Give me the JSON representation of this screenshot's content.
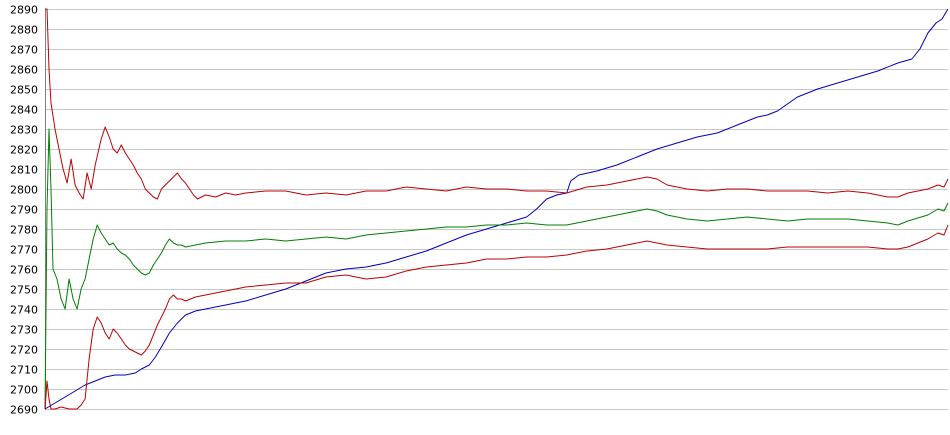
{
  "chart_data": {
    "type": "line",
    "title": "",
    "xlabel": "",
    "ylabel": "",
    "ylim": [
      2690,
      2890
    ],
    "xlim": [
      0,
      450
    ],
    "grid": true,
    "legend": "none",
    "y_ticks": [
      "2890",
      "2880",
      "2870",
      "2860",
      "2850",
      "2840",
      "2830",
      "2820",
      "2810",
      "2800",
      "2790",
      "2780",
      "2770",
      "2760",
      "2750",
      "2740",
      "2730",
      "2720",
      "2710",
      "2700",
      "2690"
    ],
    "series": [
      {
        "color": "#0000c0",
        "points": [
          [
            0,
            2690
          ],
          [
            5,
            2693
          ],
          [
            10,
            2696
          ],
          [
            15,
            2699
          ],
          [
            20,
            2702
          ],
          [
            25,
            2704
          ],
          [
            30,
            2706
          ],
          [
            35,
            2707
          ],
          [
            40,
            2707
          ],
          [
            45,
            2708
          ],
          [
            48,
            2710
          ],
          [
            52,
            2712
          ],
          [
            55,
            2716
          ],
          [
            58,
            2721
          ],
          [
            62,
            2728
          ],
          [
            66,
            2733
          ],
          [
            70,
            2737
          ],
          [
            75,
            2739
          ],
          [
            80,
            2740
          ],
          [
            90,
            2742
          ],
          [
            100,
            2744
          ],
          [
            110,
            2747
          ],
          [
            120,
            2750
          ],
          [
            130,
            2754
          ],
          [
            140,
            2758
          ],
          [
            150,
            2760
          ],
          [
            160,
            2761
          ],
          [
            170,
            2763
          ],
          [
            180,
            2766
          ],
          [
            190,
            2769
          ],
          [
            200,
            2773
          ],
          [
            210,
            2777
          ],
          [
            220,
            2780
          ],
          [
            230,
            2783
          ],
          [
            240,
            2786
          ],
          [
            245,
            2790
          ],
          [
            250,
            2795
          ],
          [
            255,
            2797
          ],
          [
            260,
            2798
          ],
          [
            262,
            2804
          ],
          [
            266,
            2807
          ],
          [
            275,
            2809
          ],
          [
            285,
            2812
          ],
          [
            295,
            2816
          ],
          [
            305,
            2820
          ],
          [
            315,
            2823
          ],
          [
            325,
            2826
          ],
          [
            335,
            2828
          ],
          [
            345,
            2832
          ],
          [
            355,
            2836
          ],
          [
            360,
            2837
          ],
          [
            365,
            2839
          ],
          [
            375,
            2846
          ],
          [
            385,
            2850
          ],
          [
            395,
            2853
          ],
          [
            405,
            2856
          ],
          [
            415,
            2859
          ],
          [
            425,
            2863
          ],
          [
            432,
            2865
          ],
          [
            436,
            2870
          ],
          [
            440,
            2878
          ],
          [
            444,
            2883
          ],
          [
            447,
            2885
          ],
          [
            450,
            2890
          ]
        ]
      },
      {
        "color": "#c00000",
        "points": [
          [
            0,
            2890
          ],
          [
            1,
            2890
          ],
          [
            2,
            2860
          ],
          [
            3,
            2843
          ],
          [
            5,
            2830
          ],
          [
            7,
            2820
          ],
          [
            9,
            2810
          ],
          [
            11,
            2803
          ],
          [
            13,
            2815
          ],
          [
            15,
            2802
          ],
          [
            17,
            2798
          ],
          [
            19,
            2795
          ],
          [
            21,
            2808
          ],
          [
            23,
            2800
          ],
          [
            25,
            2812
          ],
          [
            28,
            2825
          ],
          [
            30,
            2831
          ],
          [
            32,
            2826
          ],
          [
            34,
            2820
          ],
          [
            36,
            2818
          ],
          [
            38,
            2822
          ],
          [
            40,
            2818
          ],
          [
            42,
            2815
          ],
          [
            44,
            2812
          ],
          [
            46,
            2808
          ],
          [
            48,
            2805
          ],
          [
            50,
            2800
          ],
          [
            52,
            2798
          ],
          [
            54,
            2796
          ],
          [
            56,
            2795
          ],
          [
            58,
            2800
          ],
          [
            60,
            2802
          ],
          [
            62,
            2804
          ],
          [
            64,
            2806
          ],
          [
            66,
            2808
          ],
          [
            68,
            2805
          ],
          [
            70,
            2803
          ],
          [
            72,
            2800
          ],
          [
            74,
            2797
          ],
          [
            76,
            2795
          ],
          [
            80,
            2797
          ],
          [
            85,
            2796
          ],
          [
            90,
            2798
          ],
          [
            95,
            2797
          ],
          [
            100,
            2798
          ],
          [
            110,
            2799
          ],
          [
            120,
            2799
          ],
          [
            130,
            2797
          ],
          [
            140,
            2798
          ],
          [
            150,
            2797
          ],
          [
            160,
            2799
          ],
          [
            170,
            2799
          ],
          [
            180,
            2801
          ],
          [
            190,
            2800
          ],
          [
            200,
            2799
          ],
          [
            210,
            2801
          ],
          [
            220,
            2800
          ],
          [
            230,
            2800
          ],
          [
            240,
            2799
          ],
          [
            250,
            2799
          ],
          [
            260,
            2798
          ],
          [
            270,
            2801
          ],
          [
            280,
            2802
          ],
          [
            290,
            2804
          ],
          [
            300,
            2806
          ],
          [
            305,
            2805
          ],
          [
            310,
            2802
          ],
          [
            320,
            2800
          ],
          [
            330,
            2799
          ],
          [
            340,
            2800
          ],
          [
            350,
            2800
          ],
          [
            360,
            2799
          ],
          [
            370,
            2799
          ],
          [
            380,
            2799
          ],
          [
            390,
            2798
          ],
          [
            400,
            2799
          ],
          [
            410,
            2798
          ],
          [
            420,
            2796
          ],
          [
            425,
            2796
          ],
          [
            430,
            2798
          ],
          [
            440,
            2800
          ],
          [
            445,
            2802
          ],
          [
            448,
            2801
          ],
          [
            450,
            2805
          ]
        ]
      },
      {
        "color": "#008000",
        "points": [
          [
            0,
            2690
          ],
          [
            1,
            2790
          ],
          [
            2,
            2830
          ],
          [
            3,
            2800
          ],
          [
            4,
            2760
          ],
          [
            6,
            2755
          ],
          [
            8,
            2745
          ],
          [
            10,
            2740
          ],
          [
            12,
            2755
          ],
          [
            14,
            2745
          ],
          [
            16,
            2740
          ],
          [
            18,
            2750
          ],
          [
            20,
            2755
          ],
          [
            22,
            2765
          ],
          [
            24,
            2775
          ],
          [
            26,
            2782
          ],
          [
            28,
            2778
          ],
          [
            30,
            2775
          ],
          [
            32,
            2772
          ],
          [
            34,
            2773
          ],
          [
            36,
            2770
          ],
          [
            38,
            2768
          ],
          [
            40,
            2767
          ],
          [
            42,
            2765
          ],
          [
            44,
            2762
          ],
          [
            46,
            2760
          ],
          [
            48,
            2758
          ],
          [
            50,
            2757
          ],
          [
            52,
            2758
          ],
          [
            54,
            2762
          ],
          [
            56,
            2765
          ],
          [
            58,
            2768
          ],
          [
            60,
            2772
          ],
          [
            62,
            2775
          ],
          [
            64,
            2773
          ],
          [
            66,
            2772
          ],
          [
            68,
            2772
          ],
          [
            70,
            2771
          ],
          [
            75,
            2772
          ],
          [
            80,
            2773
          ],
          [
            90,
            2774
          ],
          [
            100,
            2774
          ],
          [
            110,
            2775
          ],
          [
            120,
            2774
          ],
          [
            130,
            2775
          ],
          [
            140,
            2776
          ],
          [
            150,
            2775
          ],
          [
            160,
            2777
          ],
          [
            170,
            2778
          ],
          [
            180,
            2779
          ],
          [
            190,
            2780
          ],
          [
            200,
            2781
          ],
          [
            210,
            2781
          ],
          [
            220,
            2782
          ],
          [
            230,
            2782
          ],
          [
            240,
            2783
          ],
          [
            250,
            2782
          ],
          [
            260,
            2782
          ],
          [
            270,
            2784
          ],
          [
            280,
            2786
          ],
          [
            290,
            2788
          ],
          [
            300,
            2790
          ],
          [
            305,
            2789
          ],
          [
            310,
            2787
          ],
          [
            320,
            2785
          ],
          [
            330,
            2784
          ],
          [
            340,
            2785
          ],
          [
            350,
            2786
          ],
          [
            360,
            2785
          ],
          [
            370,
            2784
          ],
          [
            380,
            2785
          ],
          [
            390,
            2785
          ],
          [
            400,
            2785
          ],
          [
            410,
            2784
          ],
          [
            420,
            2783
          ],
          [
            425,
            2782
          ],
          [
            430,
            2784
          ],
          [
            440,
            2787
          ],
          [
            445,
            2790
          ],
          [
            448,
            2789
          ],
          [
            450,
            2793
          ]
        ]
      },
      {
        "color": "#c00000",
        "points": [
          [
            0,
            2690
          ],
          [
            1,
            2704
          ],
          [
            2,
            2695
          ],
          [
            3,
            2690
          ],
          [
            5,
            2690
          ],
          [
            8,
            2691
          ],
          [
            12,
            2690
          ],
          [
            16,
            2690
          ],
          [
            18,
            2692
          ],
          [
            20,
            2695
          ],
          [
            22,
            2715
          ],
          [
            24,
            2730
          ],
          [
            26,
            2736
          ],
          [
            28,
            2733
          ],
          [
            30,
            2728
          ],
          [
            32,
            2725
          ],
          [
            34,
            2730
          ],
          [
            36,
            2728
          ],
          [
            38,
            2725
          ],
          [
            40,
            2722
          ],
          [
            42,
            2720
          ],
          [
            44,
            2719
          ],
          [
            46,
            2718
          ],
          [
            48,
            2717
          ],
          [
            50,
            2719
          ],
          [
            52,
            2722
          ],
          [
            54,
            2727
          ],
          [
            56,
            2732
          ],
          [
            58,
            2736
          ],
          [
            60,
            2740
          ],
          [
            62,
            2745
          ],
          [
            64,
            2747
          ],
          [
            66,
            2745
          ],
          [
            68,
            2745
          ],
          [
            70,
            2744
          ],
          [
            75,
            2746
          ],
          [
            80,
            2747
          ],
          [
            90,
            2749
          ],
          [
            100,
            2751
          ],
          [
            110,
            2752
          ],
          [
            120,
            2753
          ],
          [
            130,
            2753
          ],
          [
            140,
            2756
          ],
          [
            150,
            2757
          ],
          [
            160,
            2755
          ],
          [
            170,
            2756
          ],
          [
            180,
            2759
          ],
          [
            190,
            2761
          ],
          [
            200,
            2762
          ],
          [
            210,
            2763
          ],
          [
            220,
            2765
          ],
          [
            230,
            2765
          ],
          [
            240,
            2766
          ],
          [
            250,
            2766
          ],
          [
            260,
            2767
          ],
          [
            270,
            2769
          ],
          [
            280,
            2770
          ],
          [
            290,
            2772
          ],
          [
            300,
            2774
          ],
          [
            305,
            2773
          ],
          [
            310,
            2772
          ],
          [
            320,
            2771
          ],
          [
            330,
            2770
          ],
          [
            340,
            2770
          ],
          [
            350,
            2770
          ],
          [
            360,
            2770
          ],
          [
            370,
            2771
          ],
          [
            380,
            2771
          ],
          [
            390,
            2771
          ],
          [
            400,
            2771
          ],
          [
            410,
            2771
          ],
          [
            420,
            2770
          ],
          [
            425,
            2770
          ],
          [
            430,
            2771
          ],
          [
            440,
            2775
          ],
          [
            445,
            2778
          ],
          [
            448,
            2777
          ],
          [
            450,
            2782
          ]
        ]
      }
    ]
  }
}
